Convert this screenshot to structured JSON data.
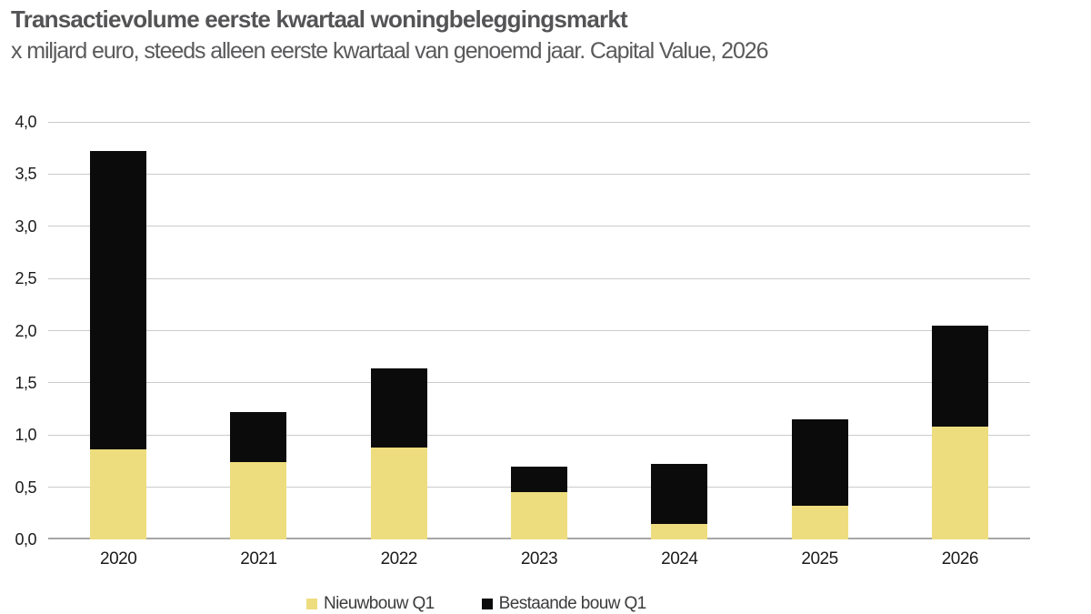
{
  "header": {
    "title": "Transactievolume eerste kwartaal woningbeleggingsmarkt",
    "subtitle": "x miljard euro, steeds alleen eerste kwartaal van genoemd jaar. Capital Value, 2026"
  },
  "chart_data": {
    "type": "bar",
    "stacked": true,
    "title": "Transactievolume eerste kwartaal woningbeleggingsmarkt",
    "subtitle": "x miljard euro, steeds alleen eerste kwartaal van genoemd jaar. Capital Value, 2026",
    "categories": [
      "2020",
      "2021",
      "2022",
      "2023",
      "2024",
      "2025",
      "2026"
    ],
    "series": [
      {
        "name": "Nieuwbouw Q1",
        "color": "#EDDD7E",
        "values": [
          0.86,
          0.74,
          0.88,
          0.45,
          0.15,
          0.32,
          1.08
        ]
      },
      {
        "name": "Bestaande bouw Q1",
        "color": "#0B0B0B",
        "values": [
          2.86,
          0.48,
          0.76,
          0.25,
          0.57,
          0.83,
          0.97
        ]
      }
    ],
    "stack_totals": [
      3.72,
      1.22,
      1.64,
      0.7,
      0.72,
      1.15,
      2.05
    ],
    "xlabel": "",
    "ylabel": "",
    "ylim": [
      0,
      4
    ],
    "yticks": [
      {
        "value": 0.0,
        "label": "0,0"
      },
      {
        "value": 0.5,
        "label": "0,5"
      },
      {
        "value": 1.0,
        "label": "1,0"
      },
      {
        "value": 1.5,
        "label": "1,5"
      },
      {
        "value": 2.0,
        "label": "2,0"
      },
      {
        "value": 2.5,
        "label": "2,5"
      },
      {
        "value": 3.0,
        "label": "3,0"
      },
      {
        "value": 3.5,
        "label": "3,5"
      },
      {
        "value": 4.0,
        "label": "4,0"
      }
    ],
    "grid": "horizontal",
    "legend_position": "bottom"
  },
  "colors": {
    "nieuwbouw": "#EDDD7E",
    "bestaande_bouw": "#0B0B0B",
    "gridline": "#cbcbcb",
    "axis_line": "#a7a7a7",
    "title_text": "#545456",
    "tick_text": "#1b1b1b",
    "legend_text": "#3c3c3c",
    "background": "#ffffff"
  }
}
